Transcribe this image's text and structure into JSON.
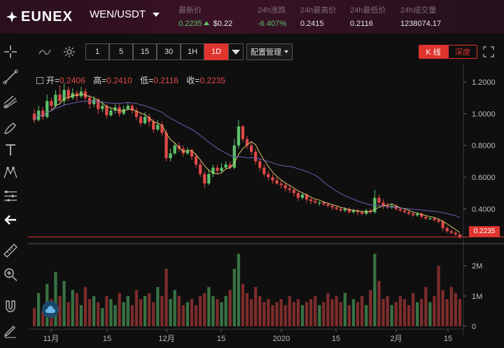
{
  "header": {
    "brand": "EUNEX",
    "pair": "WEN/USDT",
    "stats": [
      {
        "label": "最新价",
        "value": "0.2235",
        "extra": "$0.22"
      },
      {
        "label": "24h涨跌",
        "value": "-6.407%"
      },
      {
        "label": "24h最高价",
        "value": "0.2415"
      },
      {
        "label": "24h最低价",
        "value": "0.2116"
      },
      {
        "label": "24h成交量",
        "value": "1238074.17"
      }
    ]
  },
  "toolbar": {
    "intervals": [
      "1",
      "5",
      "15",
      "30",
      "1H",
      "1D"
    ],
    "active_interval": "1D",
    "config_label": "配置管理",
    "tab_kline": "K 线",
    "tab_depth": "深度"
  },
  "ohlc": {
    "open_label": "开=",
    "open": "0.2406",
    "high_label": "高=",
    "high": "0.2410",
    "low_label": "低=",
    "low": "0.2116",
    "close_label": "收=",
    "close": "0.2235"
  },
  "last_price_tag": "0.2235",
  "colors": {
    "up": "#5cc26b",
    "down": "#e04848",
    "accent": "#e0342f"
  },
  "chart_data": {
    "type": "candlestick",
    "price_ticks": [
      "1.2000",
      "1.0000",
      "0.8000",
      "0.6000",
      "0.4000"
    ],
    "volume_ticks": [
      "2M",
      "1M",
      "0"
    ],
    "x_ticks": [
      "11月",
      "15",
      "12月",
      "15",
      "2020",
      "15",
      "2月",
      "15"
    ],
    "ylim": [
      0.19,
      1.24
    ],
    "candles": [
      [
        1.0,
        0.96,
        1.03,
        0.94
      ],
      [
        0.96,
        1.02,
        1.05,
        0.95
      ],
      [
        1.02,
        0.98,
        1.04,
        0.96
      ],
      [
        0.98,
        1.08,
        1.12,
        0.97
      ],
      [
        1.08,
        1.05,
        1.1,
        1.02
      ],
      [
        1.05,
        1.12,
        1.15,
        1.04
      ],
      [
        1.12,
        1.08,
        1.18,
        1.06
      ],
      [
        1.08,
        1.15,
        1.19,
        1.05
      ],
      [
        1.15,
        1.1,
        1.17,
        1.08
      ],
      [
        1.1,
        1.13,
        1.16,
        1.09
      ],
      [
        1.13,
        1.11,
        1.15,
        1.08
      ],
      [
        1.11,
        1.14,
        1.17,
        1.1
      ],
      [
        1.14,
        1.1,
        1.16,
        1.08
      ],
      [
        1.1,
        1.06,
        1.12,
        1.03
      ],
      [
        1.06,
        1.09,
        1.11,
        1.04
      ],
      [
        1.09,
        1.03,
        1.1,
        1.0
      ],
      [
        1.03,
        1.05,
        1.08,
        1.01
      ],
      [
        1.05,
        0.99,
        1.06,
        0.97
      ],
      [
        0.99,
        1.02,
        1.04,
        0.98
      ],
      [
        1.02,
        1.04,
        1.06,
        1.0
      ],
      [
        1.04,
        1.0,
        1.06,
        0.98
      ],
      [
        1.0,
        1.03,
        1.05,
        0.99
      ],
      [
        1.03,
        1.05,
        1.07,
        1.02
      ],
      [
        1.05,
        1.02,
        1.06,
        1.0
      ],
      [
        1.02,
        0.98,
        1.04,
        0.96
      ],
      [
        0.98,
        0.94,
        1.0,
        0.92
      ],
      [
        0.94,
        0.98,
        1.01,
        0.93
      ],
      [
        0.98,
        0.95,
        1.0,
        0.92
      ],
      [
        0.95,
        0.9,
        0.97,
        0.88
      ],
      [
        0.9,
        0.93,
        0.96,
        0.89
      ],
      [
        0.93,
        0.88,
        0.95,
        0.86
      ],
      [
        0.88,
        0.72,
        0.9,
        0.7
      ],
      [
        0.72,
        0.75,
        0.78,
        0.7
      ],
      [
        0.75,
        0.8,
        0.82,
        0.74
      ],
      [
        0.8,
        0.78,
        0.82,
        0.76
      ],
      [
        0.78,
        0.75,
        0.8,
        0.73
      ],
      [
        0.75,
        0.77,
        0.79,
        0.74
      ],
      [
        0.77,
        0.73,
        0.78,
        0.71
      ],
      [
        0.73,
        0.68,
        0.75,
        0.66
      ],
      [
        0.68,
        0.62,
        0.7,
        0.6
      ],
      [
        0.62,
        0.56,
        0.64,
        0.53
      ],
      [
        0.56,
        0.62,
        0.65,
        0.55
      ],
      [
        0.62,
        0.66,
        0.68,
        0.6
      ],
      [
        0.66,
        0.64,
        0.68,
        0.62
      ],
      [
        0.64,
        0.66,
        0.69,
        0.63
      ],
      [
        0.66,
        0.68,
        0.7,
        0.65
      ],
      [
        0.68,
        0.66,
        0.7,
        0.65
      ],
      [
        0.66,
        0.8,
        0.84,
        0.65
      ],
      [
        0.8,
        0.92,
        0.96,
        0.78
      ],
      [
        0.92,
        0.84,
        0.93,
        0.82
      ],
      [
        0.84,
        0.8,
        0.86,
        0.78
      ],
      [
        0.8,
        0.76,
        0.82,
        0.74
      ],
      [
        0.76,
        0.7,
        0.78,
        0.68
      ],
      [
        0.7,
        0.66,
        0.72,
        0.64
      ],
      [
        0.66,
        0.62,
        0.68,
        0.6
      ],
      [
        0.62,
        0.6,
        0.64,
        0.58
      ],
      [
        0.6,
        0.58,
        0.62,
        0.56
      ],
      [
        0.58,
        0.56,
        0.6,
        0.55
      ],
      [
        0.56,
        0.55,
        0.58,
        0.53
      ],
      [
        0.55,
        0.53,
        0.56,
        0.51
      ],
      [
        0.53,
        0.52,
        0.55,
        0.5
      ],
      [
        0.52,
        0.5,
        0.53,
        0.48
      ],
      [
        0.5,
        0.47,
        0.51,
        0.45
      ],
      [
        0.47,
        0.49,
        0.5,
        0.46
      ],
      [
        0.49,
        0.46,
        0.5,
        0.44
      ],
      [
        0.46,
        0.45,
        0.47,
        0.43
      ],
      [
        0.45,
        0.44,
        0.46,
        0.43
      ],
      [
        0.44,
        0.44,
        0.45,
        0.42
      ],
      [
        0.44,
        0.43,
        0.45,
        0.42
      ],
      [
        0.43,
        0.42,
        0.44,
        0.41
      ],
      [
        0.42,
        0.41,
        0.43,
        0.39
      ],
      [
        0.41,
        0.4,
        0.42,
        0.39
      ],
      [
        0.4,
        0.39,
        0.41,
        0.38
      ],
      [
        0.39,
        0.4,
        0.41,
        0.38
      ],
      [
        0.4,
        0.38,
        0.41,
        0.37
      ],
      [
        0.38,
        0.39,
        0.4,
        0.37
      ],
      [
        0.39,
        0.38,
        0.4,
        0.36
      ],
      [
        0.38,
        0.37,
        0.39,
        0.36
      ],
      [
        0.37,
        0.39,
        0.4,
        0.36
      ],
      [
        0.39,
        0.38,
        0.4,
        0.37
      ],
      [
        0.38,
        0.47,
        0.52,
        0.37
      ],
      [
        0.47,
        0.44,
        0.49,
        0.42
      ],
      [
        0.44,
        0.42,
        0.46,
        0.4
      ],
      [
        0.42,
        0.41,
        0.44,
        0.4
      ],
      [
        0.41,
        0.42,
        0.43,
        0.4
      ],
      [
        0.42,
        0.4,
        0.43,
        0.39
      ],
      [
        0.4,
        0.39,
        0.41,
        0.38
      ],
      [
        0.39,
        0.38,
        0.4,
        0.37
      ],
      [
        0.38,
        0.37,
        0.39,
        0.36
      ],
      [
        0.37,
        0.36,
        0.38,
        0.35
      ],
      [
        0.36,
        0.37,
        0.38,
        0.35
      ],
      [
        0.37,
        0.35,
        0.38,
        0.34
      ],
      [
        0.35,
        0.34,
        0.36,
        0.33
      ],
      [
        0.34,
        0.34,
        0.35,
        0.33
      ],
      [
        0.34,
        0.33,
        0.35,
        0.32
      ],
      [
        0.33,
        0.32,
        0.34,
        0.31
      ],
      [
        0.32,
        0.28,
        0.33,
        0.26
      ],
      [
        0.28,
        0.26,
        0.29,
        0.25
      ],
      [
        0.26,
        0.25,
        0.27,
        0.24
      ],
      [
        0.25,
        0.24,
        0.26,
        0.23
      ],
      [
        0.2406,
        0.2235,
        0.241,
        0.2116
      ]
    ],
    "volumes": [
      0.6,
      1.1,
      0.5,
      1.4,
      0.9,
      1.8,
      1.0,
      1.5,
      0.8,
      1.2,
      1.1,
      0.7,
      1.3,
      0.9,
      1.0,
      0.8,
      0.6,
      1.0,
      0.9,
      0.7,
      1.1,
      0.8,
      1.0,
      0.7,
      1.2,
      0.9,
      1.0,
      1.1,
      0.8,
      1.3,
      1.0,
      1.9,
      0.9,
      1.2,
      1.0,
      0.7,
      0.8,
      0.9,
      0.7,
      1.0,
      1.1,
      1.3,
      1.0,
      0.9,
      0.8,
      1.0,
      1.2,
      1.9,
      2.4,
      1.4,
      1.1,
      0.9,
      1.3,
      1.0,
      0.8,
      0.9,
      0.7,
      0.8,
      0.9,
      0.7,
      1.0,
      0.8,
      0.9,
      0.7,
      0.8,
      0.9,
      1.0,
      0.7,
      0.8,
      1.1,
      0.9,
      1.0,
      0.8,
      1.1,
      0.7,
      0.9,
      0.8,
      1.0,
      0.7,
      1.2,
      2.4,
      1.5,
      0.9,
      1.0,
      0.7,
      0.8,
      1.0,
      0.9,
      0.7,
      1.1,
      0.8,
      0.9,
      1.3,
      0.8,
      1.0,
      2.0,
      1.2,
      0.9,
      1.3,
      1.1,
      0.9
    ]
  }
}
